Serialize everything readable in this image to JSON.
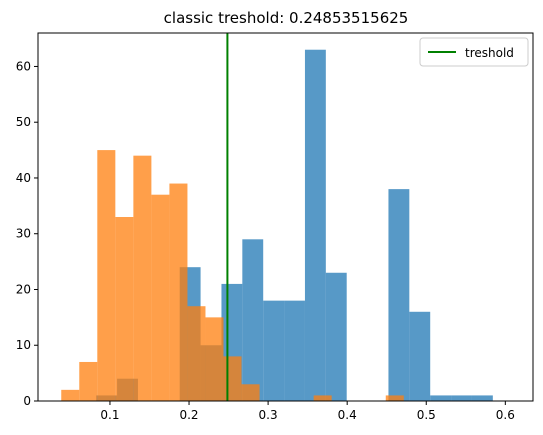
{
  "chart_data": {
    "type": "bar",
    "title": "classic treshold: 0.24853515625",
    "xlabel": "",
    "ylabel": "",
    "xlim": [
      0.009,
      0.635
    ],
    "ylim": [
      0,
      66
    ],
    "xticks": [
      0.1,
      0.2,
      0.3,
      0.4,
      0.5,
      0.6
    ],
    "xtick_labels": [
      "0.1",
      "0.2",
      "0.3",
      "0.4",
      "0.5",
      "0.6"
    ],
    "yticks": [
      0,
      10,
      20,
      30,
      40,
      50,
      60
    ],
    "ytick_labels": [
      "0",
      "10",
      "20",
      "30",
      "40",
      "50",
      "60"
    ],
    "grid": false,
    "legend": {
      "placement": "top-right",
      "entries": [
        {
          "label": "treshold",
          "color": "#008000",
          "style": "line"
        }
      ]
    },
    "threshold": {
      "x": 0.24853515625,
      "color": "#008000"
    },
    "series": [
      {
        "color": "#1f77b4",
        "alpha": 0.75,
        "bin_edges": [
          0.0826,
          0.109,
          0.1354,
          0.1618,
          0.1882,
          0.2146,
          0.241,
          0.2674,
          0.2938,
          0.3202,
          0.3466,
          0.373,
          0.3994,
          0.4258,
          0.4522,
          0.4786,
          0.505,
          0.5314,
          0.5578,
          0.5842,
          0.6106
        ],
        "counts": [
          1,
          4,
          0,
          0,
          24,
          10,
          21,
          29,
          18,
          18,
          63,
          23,
          0,
          0,
          38,
          16,
          1,
          1,
          1,
          0
        ]
      },
      {
        "color": "#ff7f0e",
        "alpha": 0.75,
        "bin_edges": [
          0.0384,
          0.0612,
          0.084,
          0.1068,
          0.1296,
          0.1524,
          0.1752,
          0.198,
          0.2208,
          0.2436,
          0.2664,
          0.2892,
          0.312,
          0.3348,
          0.3576,
          0.3804,
          0.4032,
          0.426,
          0.4488,
          0.4716,
          0.4944
        ],
        "counts": [
          2,
          7,
          45,
          33,
          44,
          37,
          39,
          17,
          15,
          8,
          3,
          0,
          0,
          0,
          1,
          0,
          0,
          0,
          1,
          0
        ]
      }
    ]
  }
}
